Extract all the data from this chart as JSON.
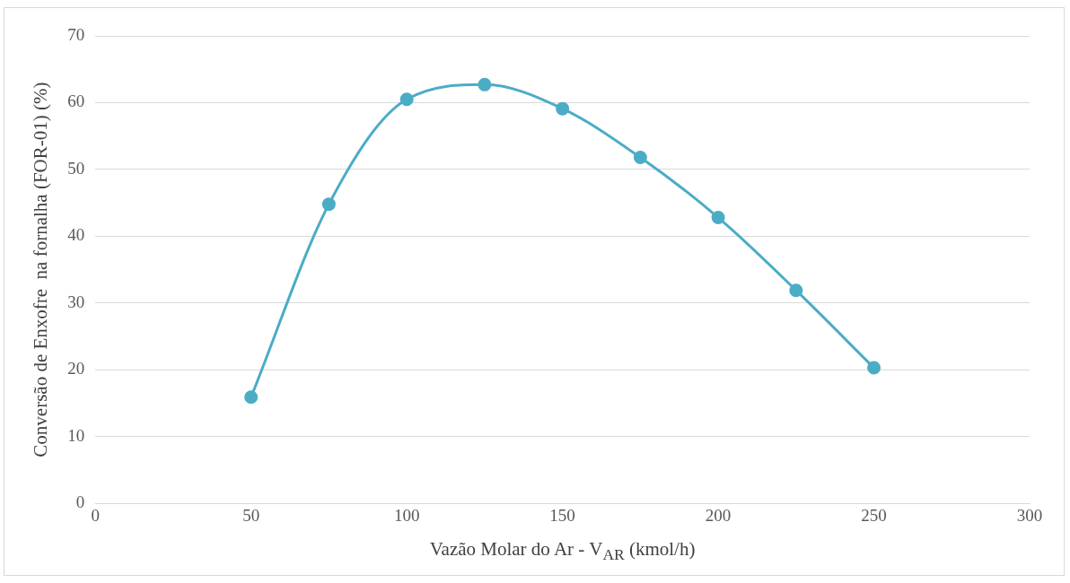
{
  "chart_data": {
    "type": "line",
    "xlabel": "Vazão Molar do Ar - V$_{AR}$ (kmol/h)",
    "ylabel": "Conversão de Enxofre  na fornalha (FOR-01) (%)",
    "x": [
      50,
      75,
      100,
      125,
      150,
      175,
      200,
      225,
      250
    ],
    "series": [
      {
        "color": "#4bacc6",
        "values": [
          15.9,
          44.8,
          60.5,
          62.7,
          59.1,
          51.8,
          42.8,
          31.9,
          20.3
        ]
      }
    ],
    "xlim": [
      0,
      300
    ],
    "xticks": [
      0,
      50,
      100,
      150,
      200,
      250,
      300
    ],
    "ylim": [
      0,
      70
    ],
    "yticks": [
      0,
      10,
      20,
      30,
      40,
      50,
      60,
      70
    ],
    "grid": "y",
    "marker": "circle",
    "line_style": "solid"
  }
}
